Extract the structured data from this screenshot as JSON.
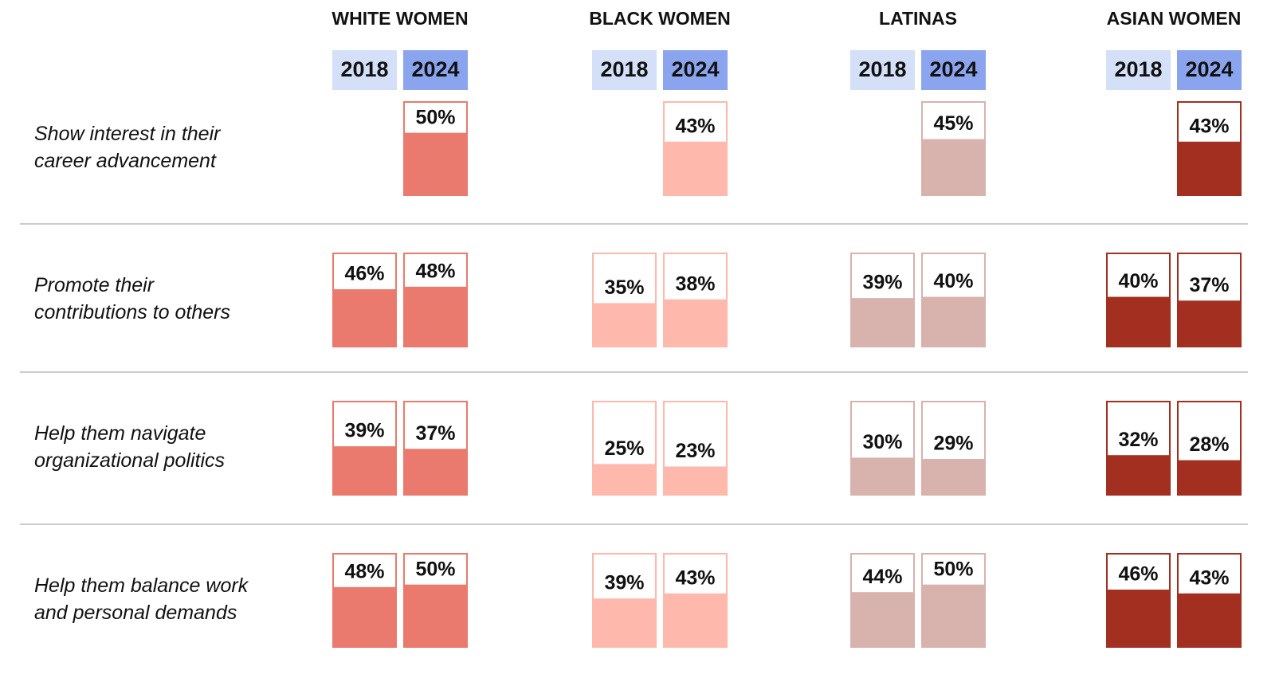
{
  "chart_data": {
    "type": "bar",
    "categories": [
      [
        "Show interest in their",
        "career advancement"
      ],
      [
        "Promote their",
        "contributions to others"
      ],
      [
        "Help them navigate",
        "organizational politics"
      ],
      [
        "Help them balance work",
        "and personal demands"
      ]
    ],
    "ylim": [
      0,
      75
    ],
    "groups": [
      {
        "name": "WHITE WOMEN",
        "color": "#e97a6d",
        "series": [
          {
            "name": "2018",
            "color": "#d3e0f7",
            "values": [
              null,
              46,
              39,
              48
            ],
            "value_labels": [
              null,
              "46%",
              "39%",
              "48%"
            ]
          },
          {
            "name": "2024",
            "color": "#8aa4ee",
            "values": [
              50,
              48,
              37,
              50
            ],
            "value_labels": [
              "50%",
              "48%",
              "37%",
              "50%"
            ]
          }
        ]
      },
      {
        "name": "BLACK WOMEN",
        "color": "#feb8ac",
        "series": [
          {
            "name": "2018",
            "color": "#d3e0f7",
            "values": [
              null,
              35,
              25,
              39
            ],
            "value_labels": [
              null,
              "35%",
              "25%",
              "39%"
            ]
          },
          {
            "name": "2024",
            "color": "#8aa4ee",
            "values": [
              43,
              38,
              23,
              43
            ],
            "value_labels": [
              "43%",
              "38%",
              "23%",
              "43%"
            ]
          }
        ]
      },
      {
        "name": "LATINAS",
        "color": "#d8b2ac",
        "series": [
          {
            "name": "2018",
            "color": "#d3e0f7",
            "values": [
              null,
              39,
              30,
              44
            ],
            "value_labels": [
              null,
              "39%",
              "30%",
              "44%"
            ]
          },
          {
            "name": "2024",
            "color": "#8aa4ee",
            "values": [
              45,
              40,
              29,
              50
            ],
            "value_labels": [
              "45%",
              "40%",
              "29%",
              "50%"
            ]
          }
        ]
      },
      {
        "name": "ASIAN WOMEN",
        "color": "#a32f20",
        "series": [
          {
            "name": "2018",
            "color": "#d3e0f7",
            "values": [
              null,
              40,
              32,
              46
            ],
            "value_labels": [
              null,
              "40%",
              "32%",
              "46%"
            ]
          },
          {
            "name": "2024",
            "color": "#8aa4ee",
            "values": [
              43,
              37,
              28,
              43
            ],
            "value_labels": [
              "43%",
              "37%",
              "28%",
              "43%"
            ]
          }
        ]
      }
    ]
  }
}
